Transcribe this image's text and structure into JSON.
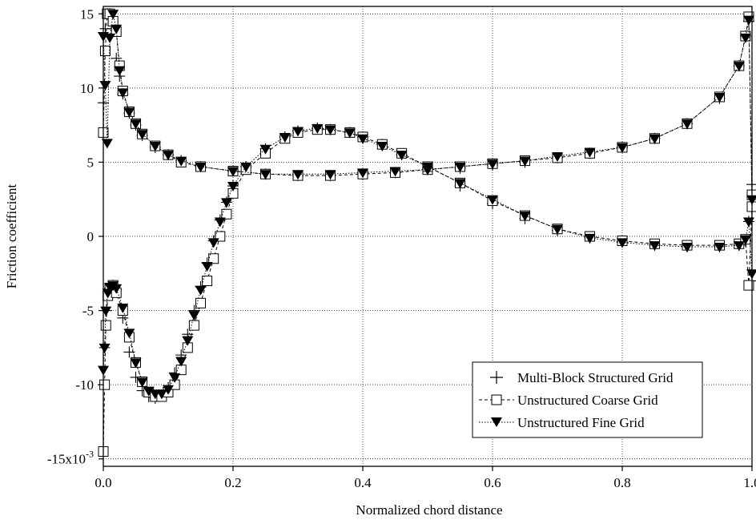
{
  "chart_data": {
    "type": "line",
    "xlabel": "Normalized chord distance",
    "ylabel": "Friction coefficient",
    "xlim": [
      0.0,
      1.0
    ],
    "ylim": [
      -15.5,
      15.5
    ],
    "x_ticks": [
      0.0,
      0.2,
      0.4,
      0.6,
      0.8,
      1.0
    ],
    "x_tick_labels": [
      "0.0",
      "0.2",
      "0.4",
      "0.6",
      "0.8",
      "1.0"
    ],
    "y_ticks": [
      15,
      10,
      5,
      0,
      -5,
      -10,
      -15
    ],
    "y_tick_labels": [
      "15",
      "10",
      "5",
      "0",
      "-5",
      "-10",
      "-15x10"
    ],
    "y_exponent_label": "-3",
    "grid": true,
    "legend_position": "bottom-right",
    "series": [
      {
        "name": "Multi-Block Structured Grid",
        "marker": "plus",
        "line": "none",
        "color": "#000000",
        "curves": [
          {
            "x": [
              0.0,
              0.003,
              0.006,
              0.01,
              0.015,
              0.02,
              0.025,
              0.03,
              0.04,
              0.05,
              0.06,
              0.08,
              0.1,
              0.12,
              0.15,
              0.2,
              0.25,
              0.3,
              0.35,
              0.4,
              0.45,
              0.5,
              0.55,
              0.6,
              0.65,
              0.7,
              0.75,
              0.8,
              0.85,
              0.9,
              0.95,
              0.98,
              0.99,
              0.995,
              1.0
            ],
            "y": [
              9.0,
              14.0,
              15.0,
              15.0,
              14.0,
              12.0,
              10.8,
              9.6,
              8.3,
              7.5,
              6.8,
              6.0,
              5.5,
              5.1,
              4.7,
              4.4,
              4.2,
              4.1,
              4.1,
              4.2,
              4.3,
              4.5,
              4.6,
              4.8,
              5.0,
              5.3,
              5.6,
              6.0,
              6.6,
              7.6,
              9.3,
              11.5,
              13.5,
              14.5,
              3.5
            ]
          },
          {
            "x": [
              0.0,
              0.002,
              0.005,
              0.01,
              0.015,
              0.02,
              0.03,
              0.04,
              0.05,
              0.06,
              0.07,
              0.08,
              0.09,
              0.1,
              0.11,
              0.12,
              0.13,
              0.14,
              0.15,
              0.16,
              0.17,
              0.18,
              0.19,
              0.2,
              0.22,
              0.25,
              0.28,
              0.3,
              0.33,
              0.35,
              0.38,
              0.4,
              0.43,
              0.46,
              0.5,
              0.55,
              0.6,
              0.65,
              0.7,
              0.75,
              0.8,
              0.85,
              0.9,
              0.95,
              0.98,
              0.99,
              0.995,
              1.0
            ],
            "y": [
              -10.0,
              -7.5,
              -5.0,
              -3.5,
              -3.3,
              -3.6,
              -5.5,
              -7.8,
              -9.5,
              -10.4,
              -10.8,
              -10.9,
              -10.7,
              -10.2,
              -9.2,
              -8.0,
              -6.6,
              -5.0,
              -3.4,
              -1.8,
              -0.3,
              1.1,
              2.3,
              3.4,
              4.7,
              5.9,
              6.7,
              7.1,
              7.3,
              7.2,
              7.0,
              6.7,
              6.2,
              5.5,
              4.6,
              3.4,
              2.2,
              1.2,
              0.4,
              -0.1,
              -0.4,
              -0.6,
              -0.7,
              -0.7,
              -0.6,
              -0.3,
              1.0,
              -3.0
            ]
          }
        ]
      },
      {
        "name": "Unstructured Coarse Grid",
        "marker": "square-open",
        "line": "dashed",
        "color": "#000000",
        "curves": [
          {
            "x": [
              0.0,
              0.003,
              0.006,
              0.01,
              0.015,
              0.02,
              0.025,
              0.03,
              0.04,
              0.05,
              0.06,
              0.08,
              0.1,
              0.12,
              0.15,
              0.2,
              0.25,
              0.3,
              0.35,
              0.4,
              0.45,
              0.5,
              0.55,
              0.6,
              0.65,
              0.7,
              0.75,
              0.8,
              0.85,
              0.9,
              0.95,
              0.98,
              0.99,
              0.995,
              1.0
            ],
            "y": [
              7.0,
              12.5,
              15.0,
              15.0,
              14.5,
              13.8,
              11.5,
              9.8,
              8.4,
              7.6,
              6.9,
              6.1,
              5.5,
              5.0,
              4.7,
              4.4,
              4.2,
              4.1,
              4.1,
              4.2,
              4.3,
              4.5,
              4.7,
              4.9,
              5.1,
              5.3,
              5.6,
              6.0,
              6.6,
              7.6,
              9.4,
              11.5,
              13.5,
              14.8,
              2.8
            ]
          },
          {
            "x": [
              0.0,
              0.002,
              0.004,
              0.007,
              0.01,
              0.015,
              0.02,
              0.03,
              0.04,
              0.05,
              0.06,
              0.07,
              0.08,
              0.09,
              0.1,
              0.11,
              0.12,
              0.13,
              0.14,
              0.15,
              0.16,
              0.17,
              0.18,
              0.19,
              0.2,
              0.22,
              0.25,
              0.28,
              0.3,
              0.33,
              0.35,
              0.38,
              0.4,
              0.43,
              0.46,
              0.5,
              0.55,
              0.6,
              0.65,
              0.7,
              0.75,
              0.8,
              0.85,
              0.9,
              0.95,
              0.98,
              0.99,
              0.995,
              1.0
            ],
            "y": [
              -14.5,
              -10.0,
              -6.0,
              -4.0,
              -3.5,
              -3.3,
              -3.8,
              -5.0,
              -6.8,
              -8.5,
              -9.8,
              -10.5,
              -10.8,
              -10.8,
              -10.5,
              -10.0,
              -9.0,
              -7.5,
              -6.0,
              -4.5,
              -3.0,
              -1.5,
              0.0,
              1.5,
              2.9,
              4.5,
              5.6,
              6.6,
              7.0,
              7.2,
              7.2,
              7.0,
              6.7,
              6.2,
              5.6,
              4.7,
              3.6,
              2.4,
              1.4,
              0.5,
              0.0,
              -0.3,
              -0.5,
              -0.6,
              -0.6,
              -0.5,
              -0.2,
              -3.3,
              2.0
            ]
          }
        ]
      },
      {
        "name": "Unstructured Fine Grid",
        "marker": "triangle-down-filled",
        "line": "dotted",
        "color": "#000000",
        "curves": [
          {
            "x": [
              0.0,
              0.003,
              0.006,
              0.01,
              0.015,
              0.02,
              0.025,
              0.03,
              0.04,
              0.05,
              0.06,
              0.08,
              0.1,
              0.12,
              0.15,
              0.2,
              0.25,
              0.3,
              0.35,
              0.4,
              0.45,
              0.5,
              0.55,
              0.6,
              0.65,
              0.7,
              0.75,
              0.8,
              0.85,
              0.9,
              0.95,
              0.98,
              0.99,
              0.995,
              1.0
            ],
            "y": [
              13.5,
              10.2,
              6.3,
              13.4,
              15.0,
              14.0,
              11.2,
              9.7,
              8.4,
              7.6,
              6.9,
              6.1,
              5.5,
              5.1,
              4.7,
              4.4,
              4.2,
              4.2,
              4.2,
              4.3,
              4.4,
              4.5,
              4.7,
              4.9,
              5.1,
              5.4,
              5.7,
              6.0,
              6.6,
              7.6,
              9.4,
              11.5,
              13.4,
              14.6,
              2.5
            ]
          },
          {
            "x": [
              0.0,
              0.002,
              0.004,
              0.007,
              0.01,
              0.015,
              0.02,
              0.03,
              0.04,
              0.05,
              0.06,
              0.07,
              0.08,
              0.09,
              0.1,
              0.11,
              0.12,
              0.13,
              0.14,
              0.15,
              0.16,
              0.17,
              0.18,
              0.19,
              0.2,
              0.22,
              0.25,
              0.28,
              0.3,
              0.33,
              0.35,
              0.38,
              0.4,
              0.43,
              0.46,
              0.5,
              0.55,
              0.6,
              0.65,
              0.7,
              0.75,
              0.8,
              0.85,
              0.9,
              0.95,
              0.98,
              0.99,
              0.995,
              1.0
            ],
            "y": [
              -9.0,
              -7.5,
              -5.0,
              -3.8,
              -3.4,
              -3.3,
              -3.5,
              -4.8,
              -6.5,
              -8.5,
              -9.8,
              -10.4,
              -10.6,
              -10.6,
              -10.3,
              -9.5,
              -8.4,
              -7.0,
              -5.3,
              -3.6,
              -2.0,
              -0.4,
              1.0,
              2.3,
              3.4,
              4.7,
              5.9,
              6.7,
              7.1,
              7.3,
              7.2,
              7.0,
              6.6,
              6.1,
              5.5,
              4.7,
              3.6,
              2.5,
              1.4,
              0.5,
              -0.1,
              -0.4,
              -0.6,
              -0.7,
              -0.7,
              -0.6,
              -0.2,
              1.0,
              -2.5
            ]
          }
        ]
      }
    ]
  }
}
